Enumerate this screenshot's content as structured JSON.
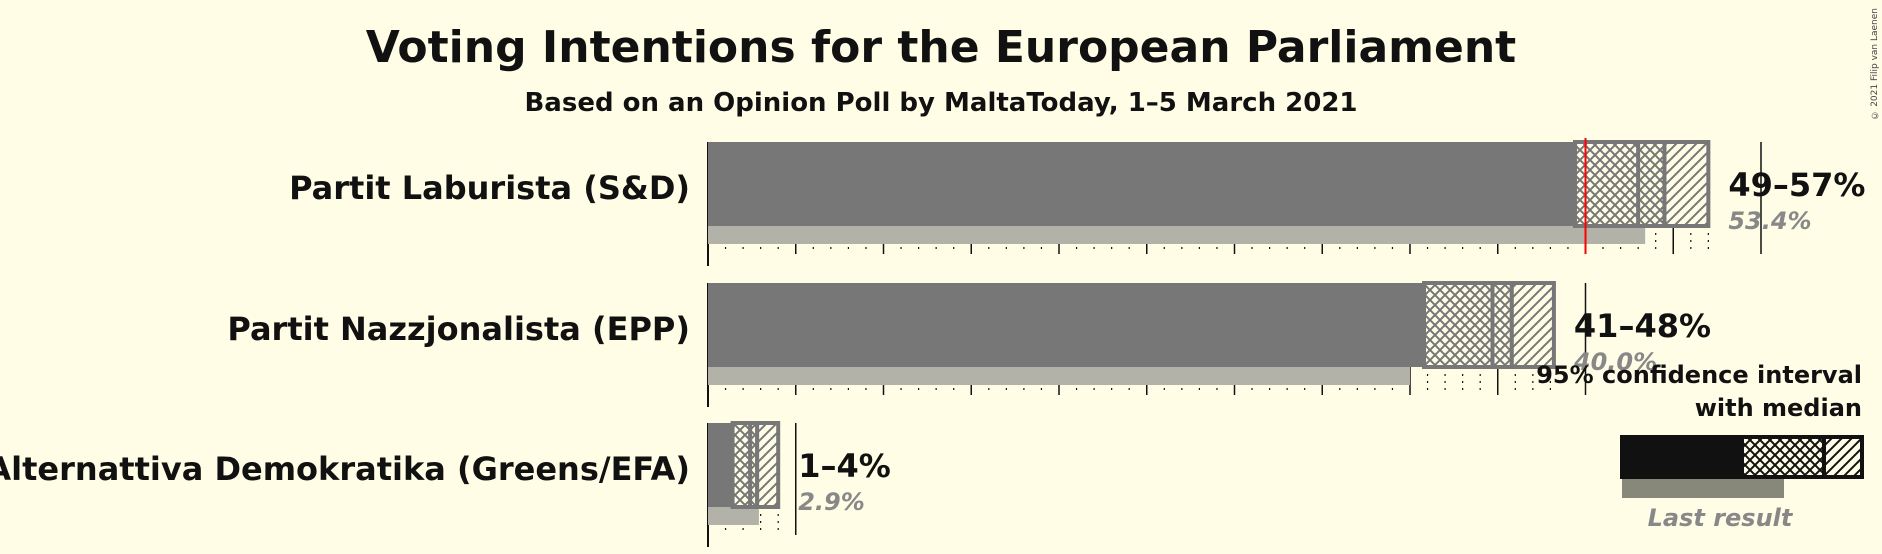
{
  "chart_data": {
    "type": "bar",
    "title": "Voting Intentions for the European Parliament",
    "subtitle": "Based on an Opinion Poll by MaltaToday, 1–5 March 2021",
    "categories": [
      "Partit Laburista (S&D)",
      "Partit Nazzjonalista (EPP)",
      "Alternattiva Demokratika (Greens/EFA)"
    ],
    "series": [
      {
        "ci80_low": [
          49.4,
          40.8,
          1.4
        ],
        "median": [
          53.0,
          44.7,
          2.4
        ],
        "ci80_high": [
          54.5,
          45.8,
          2.8
        ],
        "ci95_high": [
          57.0,
          48.2,
          4.0
        ]
      }
    ],
    "interval_labels": [
      "49–57%",
      "41–48%",
      "1–4%"
    ],
    "last_result": [
      53.4,
      40.0,
      2.9
    ],
    "last_result_labels": [
      "53.4%",
      "40.0%",
      "2.9%"
    ],
    "reference_line": 50,
    "gridline_step": 5,
    "xlim": [
      0,
      60
    ],
    "legend": {
      "text_line1": "95% confidence interval",
      "text_line2": "with median",
      "last_result": "Last result",
      "placement": "bottom-right"
    },
    "colors": {
      "bar": "#777777",
      "last_result": "#b2b2a8",
      "reference": "#ff0000",
      "legend_bar": "#111111",
      "legend_last": "#88887a"
    }
  },
  "copyright": "© 2021 Filip van Laenen"
}
